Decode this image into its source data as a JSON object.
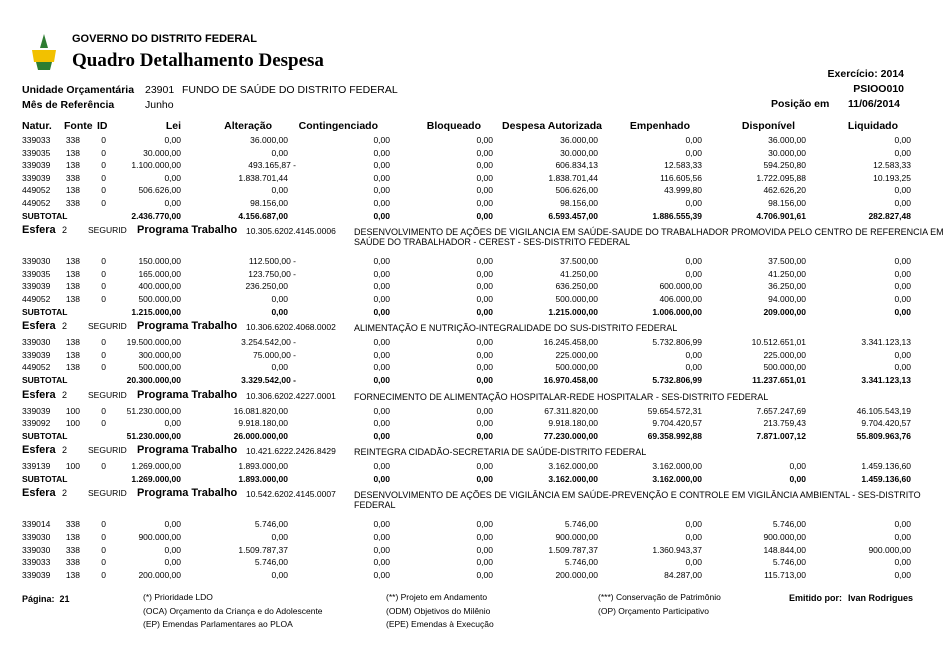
{
  "header": {
    "government": "GOVERNO DO DISTRITO FEDERAL",
    "title": "Quadro Detalhamento Despesa",
    "year_label": "Exercício:",
    "year": "2014",
    "code": "PSIOO010",
    "unit_label": "Unidade Orçamentária",
    "unit_code": "23901",
    "unit_name": "FUNDO DE SAÚDE DO DISTRITO FEDERAL",
    "month_label": "Mês de Referência",
    "month": "Junho",
    "position_label": "Posição em",
    "position_date": "11/06/2014"
  },
  "columns": [
    "Natur.",
    "Fonte",
    "ID",
    "Lei",
    "Alteração",
    "Contingenciado",
    "Bloqueado",
    "Despesa Autorizada",
    "Empenhado",
    "Disponível",
    "Liquidado"
  ],
  "subtotal_label": "SUBTOTAL",
  "groups": [
    {
      "rows": [
        [
          "339033",
          "338",
          "0",
          "0,00",
          "36.000,00",
          "0,00",
          "0,00",
          "36.000,00",
          "0,00",
          "36.000,00",
          "0,00"
        ],
        [
          "339035",
          "138",
          "0",
          "30.000,00",
          "0,00",
          "0,00",
          "0,00",
          "30.000,00",
          "0,00",
          "30.000,00",
          "0,00"
        ],
        [
          "339039",
          "138",
          "0",
          "1.100.000,00",
          "493.165,87 -",
          "0,00",
          "0,00",
          "606.834,13",
          "12.583,33",
          "594.250,80",
          "12.583,33"
        ],
        [
          "339039",
          "338",
          "0",
          "0,00",
          "1.838.701,44",
          "0,00",
          "0,00",
          "1.838.701,44",
          "116.605,56",
          "1.722.095,88",
          "10.193,25"
        ],
        [
          "449052",
          "138",
          "0",
          "506.626,00",
          "0,00",
          "0,00",
          "0,00",
          "506.626,00",
          "43.999,80",
          "462.626,20",
          "0,00"
        ],
        [
          "449052",
          "338",
          "0",
          "0,00",
          "98.156,00",
          "0,00",
          "0,00",
          "98.156,00",
          "0,00",
          "98.156,00",
          "0,00"
        ]
      ],
      "subtotal": [
        "2.436.770,00",
        "4.156.687,00",
        "0,00",
        "0,00",
        "6.593.457,00",
        "1.886.555,39",
        "4.706.901,61",
        "282.827,48"
      ]
    },
    {
      "esfera_label": "Esfera",
      "esfera": "2",
      "agency": "SEGURID",
      "program_label": "Programa Trabalho",
      "program": "10.305.6202.4145.0006",
      "description": "DESENVOLVIMENTO DE AÇÕES DE VIGILANCIA EM SAÚDE-SAUDE DO TRABALHADOR PROMOVIDA PELO CENTRO DE REFERENCIA EM SAÚDE DO TRABALHADOR - CEREST - SES-DISTRITO FEDERAL",
      "rows": [
        [
          "339030",
          "138",
          "0",
          "150.000,00",
          "112.500,00 -",
          "0,00",
          "0,00",
          "37.500,00",
          "0,00",
          "37.500,00",
          "0,00"
        ],
        [
          "339035",
          "138",
          "0",
          "165.000,00",
          "123.750,00 -",
          "0,00",
          "0,00",
          "41.250,00",
          "0,00",
          "41.250,00",
          "0,00"
        ],
        [
          "339039",
          "138",
          "0",
          "400.000,00",
          "236.250,00",
          "0,00",
          "0,00",
          "636.250,00",
          "600.000,00",
          "36.250,00",
          "0,00"
        ],
        [
          "449052",
          "138",
          "0",
          "500.000,00",
          "0,00",
          "0,00",
          "0,00",
          "500.000,00",
          "406.000,00",
          "94.000,00",
          "0,00"
        ]
      ],
      "subtotal": [
        "1.215.000,00",
        "0,00",
        "0,00",
        "0,00",
        "1.215.000,00",
        "1.006.000,00",
        "209.000,00",
        "0,00"
      ]
    },
    {
      "esfera_label": "Esfera",
      "esfera": "2",
      "agency": "SEGURID",
      "program_label": "Programa Trabalho",
      "program": "10.306.6202.4068.0002",
      "description": "ALIMENTAÇÃO E NUTRIÇÃO-INTEGRALIDADE DO SUS-DISTRITO FEDERAL",
      "rows": [
        [
          "339030",
          "138",
          "0",
          "19.500.000,00",
          "3.254.542,00 -",
          "0,00",
          "0,00",
          "16.245.458,00",
          "5.732.806,99",
          "10.512.651,01",
          "3.341.123,13"
        ],
        [
          "339039",
          "138",
          "0",
          "300.000,00",
          "75.000,00 -",
          "0,00",
          "0,00",
          "225.000,00",
          "0,00",
          "225.000,00",
          "0,00"
        ],
        [
          "449052",
          "138",
          "0",
          "500.000,00",
          "0,00",
          "0,00",
          "0,00",
          "500.000,00",
          "0,00",
          "500.000,00",
          "0,00"
        ]
      ],
      "subtotal": [
        "20.300.000,00",
        "3.329.542,00 -",
        "0,00",
        "0,00",
        "16.970.458,00",
        "5.732.806,99",
        "11.237.651,01",
        "3.341.123,13"
      ]
    },
    {
      "esfera_label": "Esfera",
      "esfera": "2",
      "agency": "SEGURID",
      "program_label": "Programa Trabalho",
      "program": "10.306.6202.4227.0001",
      "description": "FORNECIMENTO DE ALIMENTAÇÃO HOSPITALAR-REDE HOSPITALAR - SES-DISTRITO FEDERAL",
      "rows": [
        [
          "339039",
          "100",
          "0",
          "51.230.000,00",
          "16.081.820,00",
          "0,00",
          "0,00",
          "67.311.820,00",
          "59.654.572,31",
          "7.657.247,69",
          "46.105.543,19"
        ],
        [
          "339092",
          "100",
          "0",
          "0,00",
          "9.918.180,00",
          "0,00",
          "0,00",
          "9.918.180,00",
          "9.704.420,57",
          "213.759,43",
          "9.704.420,57"
        ]
      ],
      "subtotal": [
        "51.230.000,00",
        "26.000.000,00",
        "0,00",
        "0,00",
        "77.230.000,00",
        "69.358.992,88",
        "7.871.007,12",
        "55.809.963,76"
      ]
    },
    {
      "esfera_label": "Esfera",
      "esfera": "2",
      "agency": "SEGURID",
      "program_label": "Programa Trabalho",
      "program": "10.421.6222.2426.8429",
      "description": "REINTEGRA CIDADÃO-SECRETARIA DE SAÚDE-DISTRITO FEDERAL",
      "rows": [
        [
          "339139",
          "100",
          "0",
          "1.269.000,00",
          "1.893.000,00",
          "0,00",
          "0,00",
          "3.162.000,00",
          "3.162.000,00",
          "0,00",
          "1.459.136,60"
        ]
      ],
      "subtotal": [
        "1.269.000,00",
        "1.893.000,00",
        "0,00",
        "0,00",
        "3.162.000,00",
        "3.162.000,00",
        "0,00",
        "1.459.136,60"
      ]
    },
    {
      "esfera_label": "Esfera",
      "esfera": "2",
      "agency": "SEGURID",
      "program_label": "Programa Trabalho",
      "program": "10.542.6202.4145.0007",
      "description": "DESENVOLVIMENTO DE AÇÕES DE VIGILÂNCIA EM SAÚDE-PREVENÇÃO E CONTROLE EM VIGILÂNCIA AMBIENTAL - SES-DISTRITO FEDERAL",
      "rows": [
        [
          "339014",
          "338",
          "0",
          "0,00",
          "5.746,00",
          "0,00",
          "0,00",
          "5.746,00",
          "0,00",
          "5.746,00",
          "0,00"
        ],
        [
          "339030",
          "138",
          "0",
          "900.000,00",
          "0,00",
          "0,00",
          "0,00",
          "900.000,00",
          "0,00",
          "900.000,00",
          "0,00"
        ],
        [
          "339030",
          "338",
          "0",
          "0,00",
          "1.509.787,37",
          "0,00",
          "0,00",
          "1.509.787,37",
          "1.360.943,37",
          "148.844,00",
          "900.000,00"
        ],
        [
          "339033",
          "338",
          "0",
          "0,00",
          "5.746,00",
          "0,00",
          "0,00",
          "5.746,00",
          "0,00",
          "5.746,00",
          "0,00"
        ],
        [
          "339039",
          "138",
          "0",
          "200.000,00",
          "0,00",
          "0,00",
          "0,00",
          "200.000,00",
          "84.287,00",
          "115.713,00",
          "0,00"
        ]
      ]
    }
  ],
  "footer": {
    "page_label": "Página:",
    "page": "21",
    "legend": [
      [
        "(*)  Prioridade LDO",
        "(**)  Projeto em Andamento",
        "(***)  Conservação de Patrimônio"
      ],
      [
        "(OCA)  Orçamento da Criança e do Adolescente",
        "(ODM) Objetivos do Milênio",
        "(OP) Orçamento Participativo"
      ],
      [
        "(EP)  Emendas Parlamentares ao PLOA",
        "(EPE) Emendas à Execução"
      ]
    ],
    "issued_label": "Emitido por:",
    "issued_by": "Ivan Rodrigues"
  }
}
